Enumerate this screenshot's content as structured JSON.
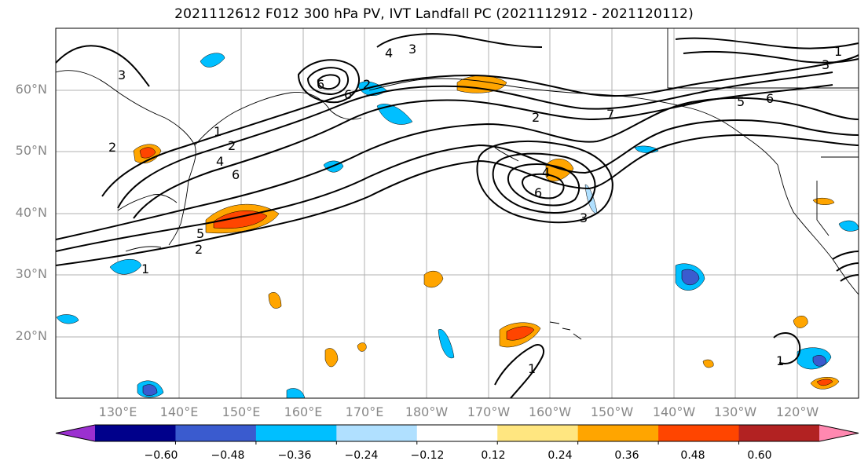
{
  "title": "2021112612 F012 300 hPa PV, IVT Landfall PC (2021112912 - 2021120112)",
  "map": {
    "lat_labels": [
      "60°N",
      "50°N",
      "40°N",
      "30°N",
      "20°N"
    ],
    "lon_labels": [
      "130°E",
      "140°E",
      "150°E",
      "160°E",
      "170°E",
      "180°W",
      "170°W",
      "160°W",
      "150°W",
      "140°W",
      "130°W",
      "120°W"
    ]
  },
  "contour_labels": [
    "1",
    "2",
    "4",
    "6",
    "2",
    "5",
    "1",
    "2",
    "3",
    "4",
    "6",
    "2",
    "6",
    "4",
    "6",
    "3",
    "7",
    "2",
    "5",
    "6",
    "3",
    "1",
    "1",
    "1",
    "3"
  ],
  "colorbar": {
    "colors": [
      "#9b30d0",
      "#00008b",
      "#3a5bcf",
      "#00bfff",
      "#b0e0ff",
      "#ffffff",
      "#ffe680",
      "#ffa500",
      "#ff4500",
      "#b22222",
      "#ff88b0"
    ],
    "tick_labels": [
      "−0.60",
      "−0.48",
      "−0.36",
      "−0.24",
      "−0.12",
      "0.12",
      "0.24",
      "0.36",
      "0.48",
      "0.60"
    ],
    "levels": [
      -0.6,
      -0.48,
      -0.36,
      -0.24,
      -0.12,
      0.12,
      0.24,
      0.36,
      0.48,
      0.6
    ]
  }
}
